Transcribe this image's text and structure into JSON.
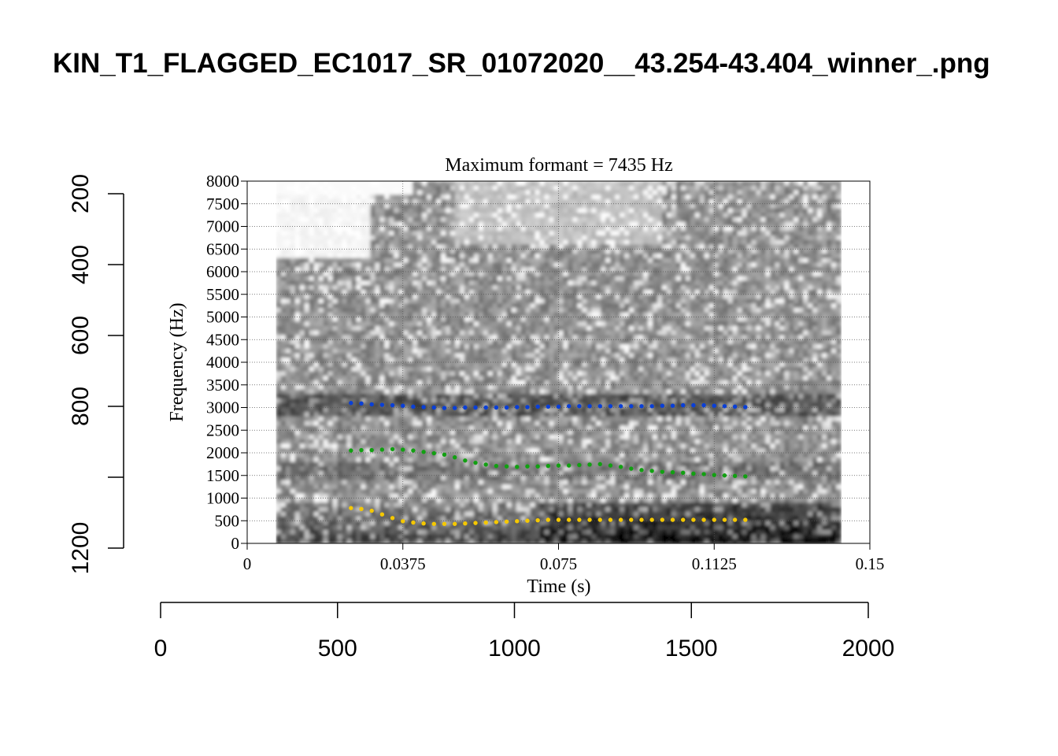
{
  "figure": {
    "title": "KIN_T1_FLAGGED_EC1017_SR_01072020__43.254-43.404_winner_.png"
  },
  "chart_data": [
    {
      "type": "scatter",
      "title": "Maximum formant  =  7435 Hz",
      "xlabel": "Time (s)",
      "ylabel": "Frequency (Hz)",
      "xlim": [
        0,
        0.15
      ],
      "ylim": [
        0,
        8000
      ],
      "x_ticks": [
        "0",
        "0.0375",
        "0.075",
        "0.1125",
        "0.15"
      ],
      "y_ticks": [
        "0",
        "500",
        "1000",
        "1500",
        "2000",
        "2500",
        "3000",
        "3500",
        "4000",
        "4500",
        "5000",
        "5500",
        "6000",
        "6500",
        "7000",
        "7500",
        "8000"
      ],
      "grid": true,
      "spectrogram_background": true,
      "spectrogram_time_range": [
        0.007,
        0.143
      ],
      "series_colors": [
        "#0a3fd6",
        "#12a012",
        "#f5c800"
      ],
      "series": [
        {
          "x": [
            0.025,
            0.0275,
            0.03,
            0.0325,
            0.035,
            0.0375,
            0.04,
            0.0425,
            0.045,
            0.0475,
            0.05,
            0.0525,
            0.055,
            0.0575,
            0.06,
            0.0625,
            0.065,
            0.0675,
            0.07,
            0.0725,
            0.075,
            0.0775,
            0.08,
            0.0825,
            0.085,
            0.0875,
            0.09,
            0.0925,
            0.095,
            0.0975,
            0.1,
            0.1025,
            0.105,
            0.1075,
            0.11,
            0.1125,
            0.115,
            0.1175,
            0.12
          ],
          "values": [
            3100,
            3090,
            3070,
            3060,
            3050,
            3040,
            3020,
            3010,
            3000,
            2990,
            2990,
            3000,
            3000,
            3000,
            3000,
            3000,
            3010,
            3010,
            3020,
            3020,
            3020,
            3030,
            3030,
            3030,
            3030,
            3030,
            3030,
            3030,
            3030,
            3030,
            3040,
            3040,
            3050,
            3050,
            3050,
            3040,
            3030,
            3020,
            3010
          ]
        },
        {
          "x": [
            0.025,
            0.0275,
            0.03,
            0.0325,
            0.035,
            0.0375,
            0.04,
            0.0425,
            0.045,
            0.0475,
            0.05,
            0.0525,
            0.055,
            0.0575,
            0.06,
            0.0625,
            0.065,
            0.0675,
            0.07,
            0.0725,
            0.075,
            0.0775,
            0.08,
            0.0825,
            0.085,
            0.0875,
            0.09,
            0.0925,
            0.095,
            0.0975,
            0.1,
            0.1025,
            0.105,
            0.1075,
            0.11,
            0.1125,
            0.115,
            0.1175,
            0.12
          ],
          "values": [
            2050,
            2060,
            2060,
            2070,
            2080,
            2070,
            2050,
            2020,
            1990,
            1960,
            1900,
            1830,
            1780,
            1740,
            1710,
            1700,
            1690,
            1700,
            1700,
            1710,
            1720,
            1720,
            1730,
            1740,
            1750,
            1720,
            1690,
            1650,
            1620,
            1600,
            1580,
            1570,
            1560,
            1540,
            1530,
            1510,
            1500,
            1490,
            1480
          ]
        },
        {
          "x": [
            0.025,
            0.0275,
            0.03,
            0.0325,
            0.035,
            0.0375,
            0.04,
            0.0425,
            0.045,
            0.0475,
            0.05,
            0.0525,
            0.055,
            0.0575,
            0.06,
            0.0625,
            0.065,
            0.0675,
            0.07,
            0.0725,
            0.075,
            0.0775,
            0.08,
            0.0825,
            0.085,
            0.0875,
            0.09,
            0.0925,
            0.095,
            0.0975,
            0.1,
            0.1025,
            0.105,
            0.1075,
            0.11,
            0.1125,
            0.115,
            0.1175,
            0.12
          ],
          "values": [
            780,
            760,
            720,
            640,
            560,
            490,
            460,
            440,
            430,
            430,
            430,
            440,
            450,
            460,
            470,
            480,
            490,
            500,
            510,
            520,
            520,
            520,
            520,
            520,
            520,
            520,
            520,
            520,
            520,
            520,
            520,
            520,
            520,
            520,
            520,
            520,
            520,
            520,
            520
          ]
        }
      ]
    },
    {
      "type": "axis",
      "orientation": "vertical",
      "ylim": [
        200,
        1200
      ],
      "reversed": true,
      "ticks": [
        200,
        400,
        600,
        800,
        1000,
        1200
      ],
      "tick_labels": [
        "200",
        "400",
        "600",
        "800",
        "",
        "1200"
      ]
    },
    {
      "type": "axis",
      "orientation": "horizontal",
      "xlim": [
        0,
        2000
      ],
      "ticks": [
        0,
        500,
        1000,
        1500,
        2000
      ],
      "tick_labels": [
        "0",
        "500",
        "1000",
        "1500",
        "2000"
      ]
    }
  ]
}
